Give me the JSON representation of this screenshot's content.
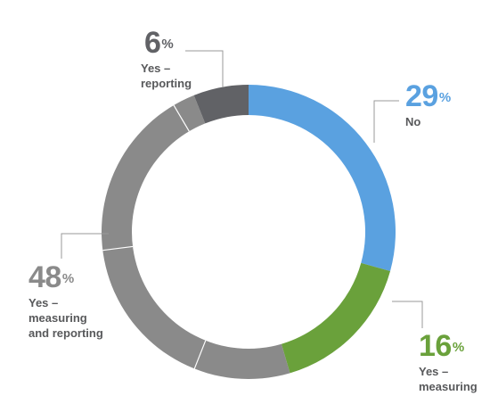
{
  "chart_data": {
    "type": "pie",
    "variant": "donut",
    "slices": [
      {
        "key": "no",
        "value": 29,
        "unit": "%",
        "label_lines": [
          "No"
        ],
        "color": "#5aa1e0",
        "label_color": "#5aa1e0"
      },
      {
        "key": "measuring",
        "value": 16,
        "unit": "%",
        "label_lines": [
          "Yes –",
          "measuring"
        ],
        "color": "#6aa13b",
        "label_color": "#6aa13b"
      },
      {
        "key": "measuring-reporting",
        "value": 48,
        "unit": "%",
        "label_lines": [
          "Yes –",
          "measuring",
          "and reporting"
        ],
        "color": "#8a8a8a",
        "label_color": "#8a8a8a"
      },
      {
        "key": "reporting",
        "value": 6,
        "unit": "%",
        "label_lines": [
          "Yes –",
          "reporting"
        ],
        "color": "#616266",
        "label_color": "#616266"
      }
    ],
    "legend": "none"
  }
}
